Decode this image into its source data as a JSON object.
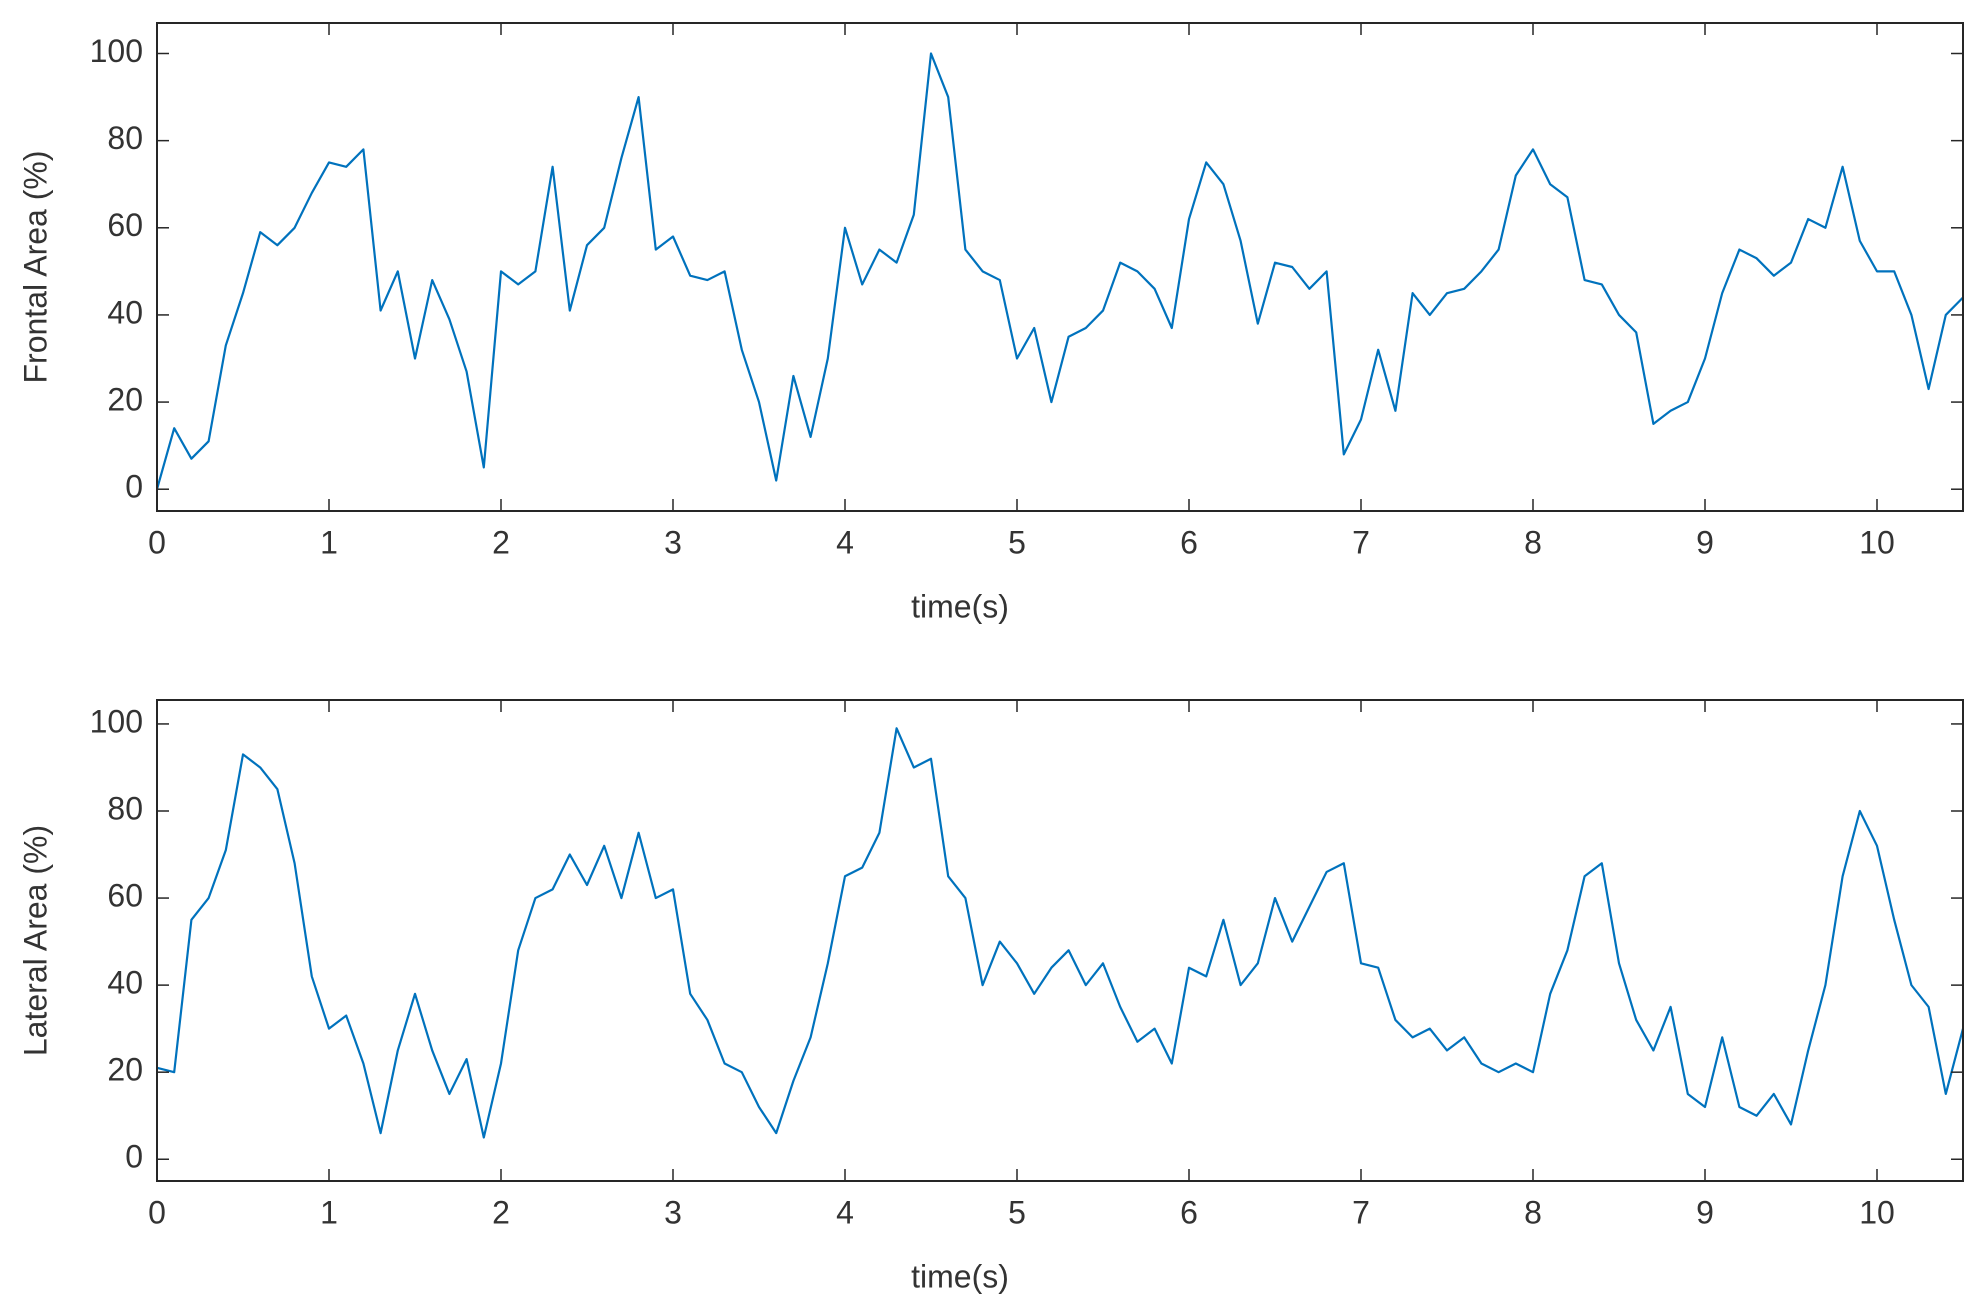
{
  "chart_data": [
    {
      "type": "line",
      "xlabel": "time(s)",
      "ylabel": "Frontal Area (%)",
      "x": [
        0,
        0.1,
        0.2,
        0.3,
        0.4,
        0.5,
        0.6,
        0.7,
        0.8,
        0.9,
        1,
        1.1,
        1.2,
        1.3,
        1.4,
        1.5,
        1.6,
        1.7,
        1.8,
        1.9,
        2,
        2.1,
        2.2,
        2.3,
        2.4,
        2.5,
        2.6,
        2.7,
        2.8,
        2.9,
        3,
        3.1,
        3.2,
        3.3,
        3.4,
        3.5,
        3.6,
        3.7,
        3.8,
        3.9,
        4,
        4.1,
        4.2,
        4.3,
        4.4,
        4.5,
        4.6,
        4.7,
        4.8,
        4.9,
        5,
        5.1,
        5.2,
        5.3,
        5.4,
        5.5,
        5.6,
        5.7,
        5.8,
        5.9,
        6,
        6.1,
        6.2,
        6.3,
        6.4,
        6.5,
        6.6,
        6.7,
        6.8,
        6.9,
        7,
        7.1,
        7.2,
        7.3,
        7.4,
        7.5,
        7.6,
        7.7,
        7.8,
        7.9,
        8,
        8.1,
        8.2,
        8.3,
        8.4,
        8.5,
        8.6,
        8.7,
        8.8,
        8.9,
        9,
        9.1,
        9.2,
        9.3,
        9.4,
        9.5,
        9.6,
        9.7,
        9.8,
        9.9,
        10,
        10.1,
        10.2,
        10.3,
        10.4,
        10.5
      ],
      "series": [
        {
          "name": "Frontal Area",
          "color": "#0072bd",
          "values": [
            0,
            14,
            7,
            11,
            33,
            45,
            59,
            56,
            60,
            68,
            75,
            74,
            78,
            41,
            50,
            30,
            48,
            39,
            27,
            5,
            50,
            47,
            50,
            74,
            41,
            56,
            60,
            76,
            90,
            55,
            58,
            49,
            48,
            50,
            32,
            20,
            2,
            26,
            12,
            30,
            60,
            47,
            55,
            52,
            63,
            100,
            90,
            55,
            50,
            48,
            30,
            37,
            20,
            35,
            37,
            41,
            52,
            50,
            46,
            37,
            62,
            75,
            70,
            57,
            38,
            52,
            51,
            46,
            50,
            8,
            16,
            32,
            18,
            45,
            40,
            45,
            46,
            50,
            55,
            72,
            78,
            70,
            67,
            48,
            47,
            40,
            36,
            15,
            18,
            20,
            30,
            45,
            55,
            53,
            49,
            52,
            62,
            60,
            74,
            57,
            50,
            50,
            40,
            23,
            40,
            44
          ]
        }
      ],
      "xlim": [
        0,
        10.5
      ],
      "xticks": [
        0,
        1,
        2,
        3,
        4,
        5,
        6,
        7,
        8,
        9,
        10
      ],
      "ylim": [
        -5,
        107
      ],
      "yticks": [
        0,
        20,
        40,
        60,
        80,
        100
      ]
    },
    {
      "type": "line",
      "xlabel": "time(s)",
      "ylabel": "Lateral Area (%)",
      "x": [
        0,
        0.1,
        0.2,
        0.3,
        0.4,
        0.5,
        0.6,
        0.7,
        0.8,
        0.9,
        1,
        1.1,
        1.2,
        1.3,
        1.4,
        1.5,
        1.6,
        1.7,
        1.8,
        1.9,
        2,
        2.1,
        2.2,
        2.3,
        2.4,
        2.5,
        2.6,
        2.7,
        2.8,
        2.9,
        3,
        3.1,
        3.2,
        3.3,
        3.4,
        3.5,
        3.6,
        3.7,
        3.8,
        3.9,
        4,
        4.1,
        4.2,
        4.3,
        4.4,
        4.5,
        4.6,
        4.7,
        4.8,
        4.9,
        5,
        5.1,
        5.2,
        5.3,
        5.4,
        5.5,
        5.6,
        5.7,
        5.8,
        5.9,
        6,
        6.1,
        6.2,
        6.3,
        6.4,
        6.5,
        6.6,
        6.7,
        6.8,
        6.9,
        7,
        7.1,
        7.2,
        7.3,
        7.4,
        7.5,
        7.6,
        7.7,
        7.8,
        7.9,
        8,
        8.1,
        8.2,
        8.3,
        8.4,
        8.5,
        8.6,
        8.7,
        8.8,
        8.9,
        9,
        9.1,
        9.2,
        9.3,
        9.4,
        9.5,
        9.6,
        9.7,
        9.8,
        9.9,
        10,
        10.1,
        10.2,
        10.3,
        10.4,
        10.5
      ],
      "series": [
        {
          "name": "Lateral Area",
          "color": "#0072bd",
          "values": [
            21,
            20,
            55,
            60,
            71,
            93,
            90,
            85,
            68,
            42,
            30,
            33,
            22,
            6,
            25,
            38,
            25,
            15,
            23,
            5,
            22,
            48,
            60,
            62,
            70,
            63,
            72,
            60,
            75,
            60,
            62,
            38,
            32,
            22,
            20,
            12,
            6,
            18,
            28,
            45,
            65,
            67,
            75,
            99,
            90,
            92,
            65,
            60,
            40,
            50,
            45,
            38,
            44,
            48,
            40,
            45,
            35,
            27,
            30,
            22,
            44,
            42,
            55,
            40,
            45,
            60,
            50,
            58,
            66,
            68,
            45,
            44,
            32,
            28,
            30,
            25,
            28,
            22,
            20,
            22,
            20,
            38,
            48,
            65,
            68,
            45,
            32,
            25,
            35,
            15,
            12,
            28,
            12,
            10,
            15,
            8,
            25,
            40,
            65,
            80,
            72,
            55,
            40,
            35,
            15,
            30
          ]
        }
      ],
      "xlim": [
        0,
        10.5
      ],
      "xticks": [
        0,
        1,
        2,
        3,
        4,
        5,
        6,
        7,
        8,
        9,
        10
      ],
      "ylim": [
        -5,
        105.5
      ],
      "yticks": [
        0,
        20,
        40,
        60,
        80,
        100
      ]
    }
  ]
}
